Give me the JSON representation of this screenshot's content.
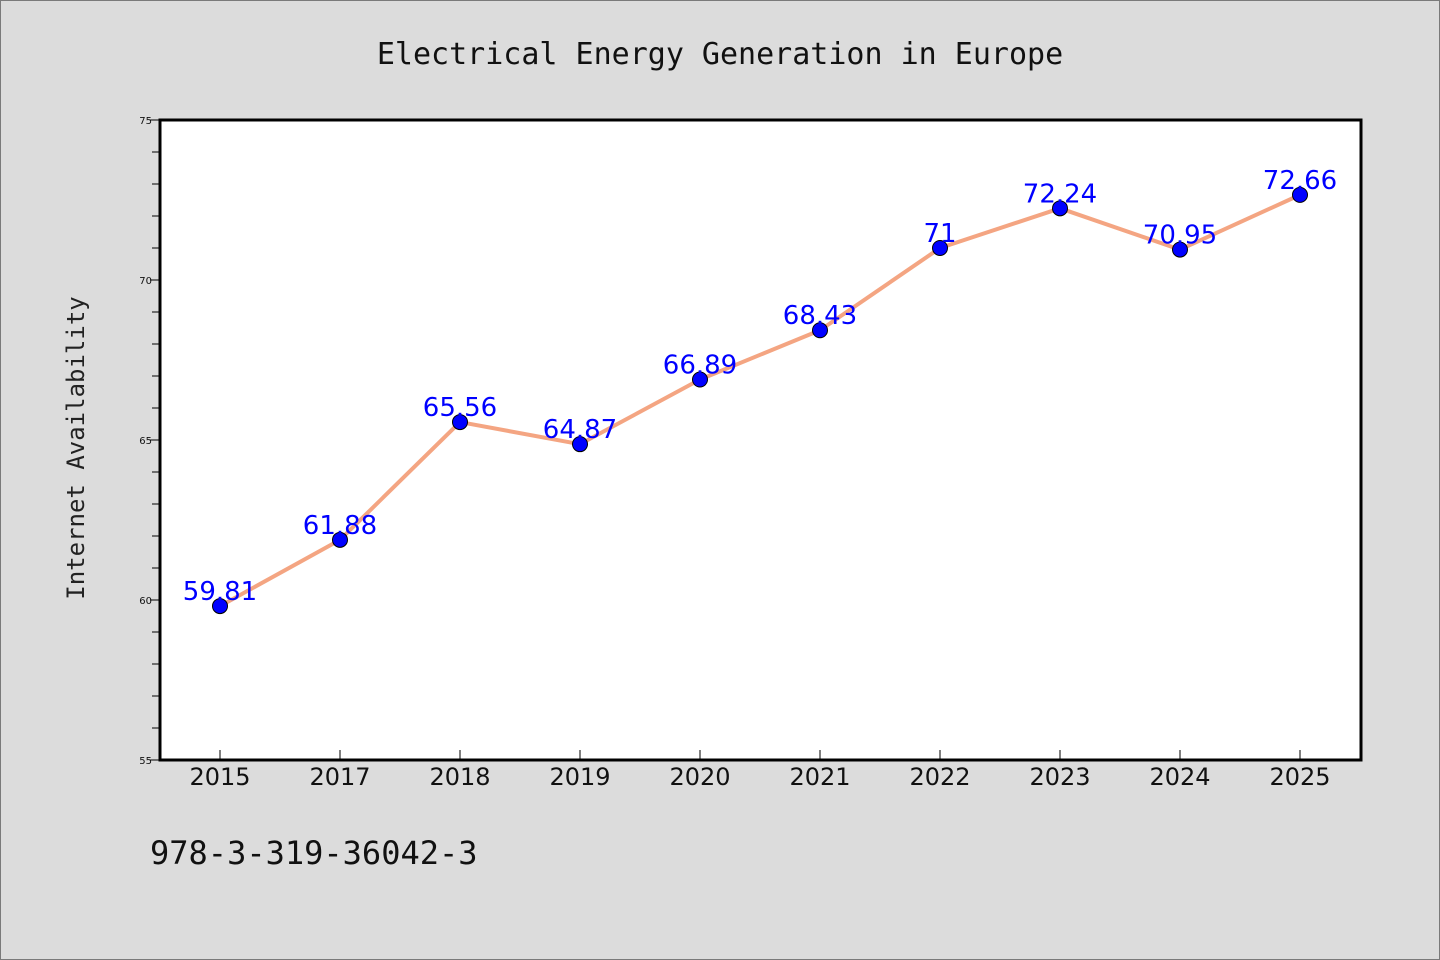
{
  "chart_data": {
    "type": "line",
    "title": "Electrical Energy Generation in Europe",
    "xlabel": "",
    "ylabel": "Internet Availability",
    "categories": [
      "2015",
      "2017",
      "2018",
      "2019",
      "2020",
      "2021",
      "2022",
      "2023",
      "2024",
      "2025"
    ],
    "series": [
      {
        "values": [
          59.81,
          61.88,
          65.56,
          64.87,
          66.89,
          68.43,
          71,
          72.24,
          70.95,
          72.66
        ],
        "labels": [
          "59.81",
          "61.88",
          "65.56",
          "64.87",
          "66.89",
          "68.43",
          "71",
          "72.24",
          "70.95",
          "72.66"
        ],
        "line_color": "#f4a582",
        "marker_color": "#0000ff"
      }
    ],
    "ylim": [
      55,
      75
    ],
    "yticks": [
      "55",
      "60",
      "65",
      "70",
      "75"
    ],
    "grid": false,
    "legend": "none"
  },
  "footer": {
    "isbn": "978-3-319-36042-3"
  }
}
